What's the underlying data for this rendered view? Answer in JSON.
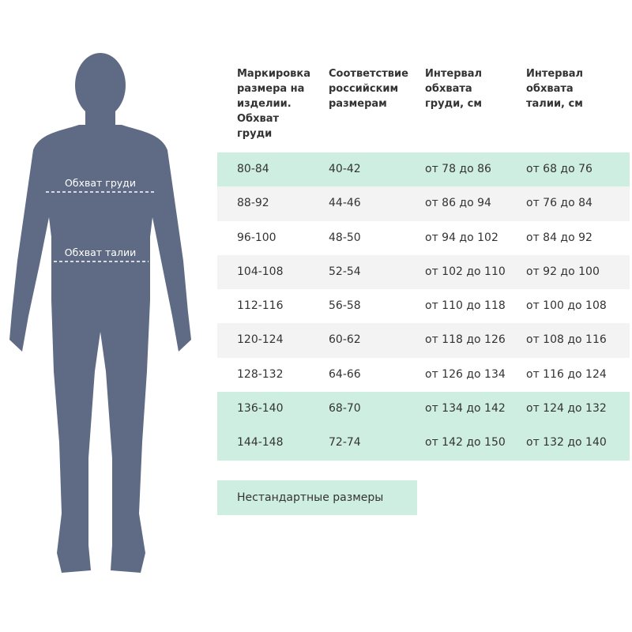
{
  "figure": {
    "labels": [
      "Обхват груди",
      "Обхват талии"
    ]
  },
  "table": {
    "header": [
      "Маркировка размера на изделии. Обхват груди",
      "Соответствие российским размерам",
      "Интервал обхвата груди, см",
      "Интервал обхвата талии, см"
    ],
    "rows": [
      [
        "80-84",
        "40-42",
        "от 78 до 86",
        "от 68 до 76"
      ],
      [
        "88-92",
        "44-46",
        "от 86 до 94",
        "от 76 до 84"
      ],
      [
        "96-100",
        "48-50",
        "от 94 до 102",
        "от 84 до 92"
      ],
      [
        "104-108",
        "52-54",
        "от 102 до 110",
        "от 92 до 100"
      ],
      [
        "112-116",
        "56-58",
        "от 110 до 118",
        "от 100 до 108"
      ],
      [
        "120-124",
        "60-62",
        "от 118 до 126",
        "от 108 до 116"
      ],
      [
        "128-132",
        "64-66",
        "от 126 до 134",
        "от 116 до 124"
      ],
      [
        "136-140",
        "68-70",
        "от 134 до 142",
        "от 124 до 132"
      ],
      [
        "144-148",
        "72-74",
        "от 142 до 150",
        "от 132 до 140"
      ]
    ]
  },
  "footer": "Нестандартные размеры"
}
